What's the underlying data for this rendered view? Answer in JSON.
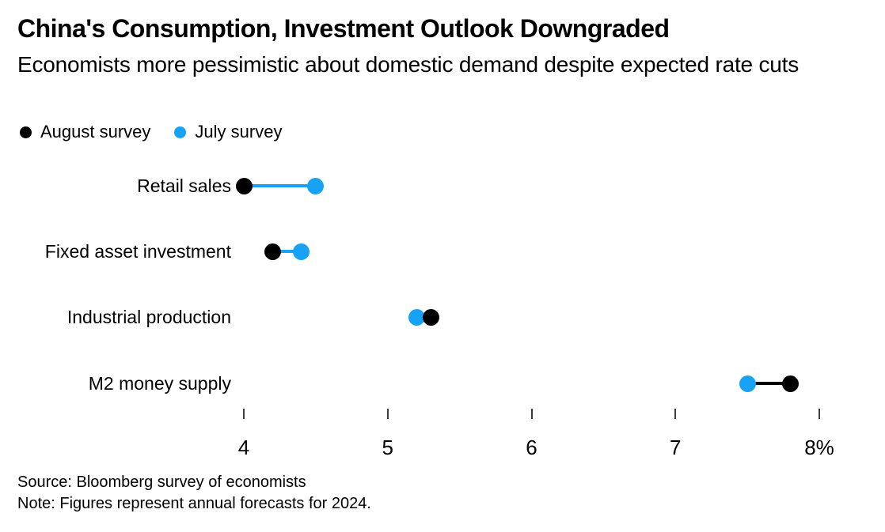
{
  "header": {
    "title": "China's Consumption, Investment Outlook Downgraded",
    "subtitle": "Economists more pessimistic about domestic demand despite expected rate cuts"
  },
  "legend": {
    "items": [
      {
        "label": "August survey",
        "color": "#000000"
      },
      {
        "label": "July survey",
        "color": "#17a2f5"
      }
    ]
  },
  "chart_data": {
    "type": "scatter",
    "variant": "dumbbell-dot-plot",
    "title": "China's Consumption, Investment Outlook Downgraded",
    "subtitle": "Economists more pessimistic about domestic demand despite expected rate cuts",
    "categories": [
      "Retail sales",
      "Fixed asset investment",
      "Industrial production",
      "M2 money supply"
    ],
    "series": [
      {
        "name": "August survey",
        "color": "#000000",
        "values": [
          4.0,
          4.2,
          5.3,
          7.8
        ]
      },
      {
        "name": "July survey",
        "color": "#17a2f5",
        "values": [
          4.5,
          4.4,
          5.2,
          7.5
        ]
      }
    ],
    "connector_colors": [
      "#17a2f5",
      "#17a2f5",
      "#000000",
      "#000000"
    ],
    "xlim": [
      4,
      8
    ],
    "x_ticks": [
      4,
      5,
      6,
      7,
      8
    ],
    "x_tick_labels": [
      "4",
      "5",
      "6",
      "7",
      "8%"
    ],
    "unit": "%",
    "grid": false,
    "legend_position": "top-left"
  },
  "footer": {
    "source": "Source: Bloomberg survey of economists",
    "note": "Note: Figures represent annual forecasts for 2024."
  }
}
